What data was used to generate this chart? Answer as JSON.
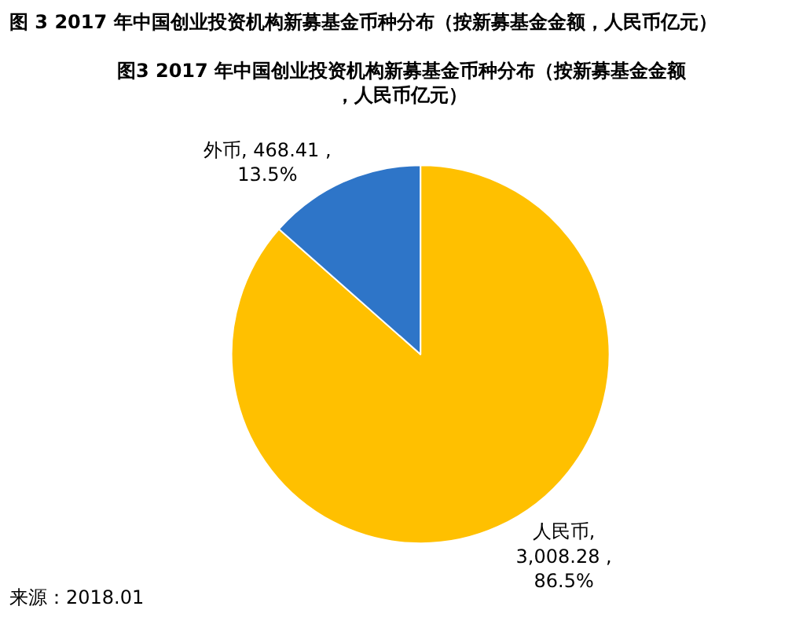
{
  "chart_data": {
    "type": "pie",
    "title": "图3 2017 年中国创业投资机构新募基金币种分布（按新募基金金额，人民币亿元）",
    "categories": [
      "人民币",
      "外币"
    ],
    "values": [
      3008.28,
      468.41
    ],
    "colors": [
      "#ffc000",
      "#2e75c8"
    ],
    "value_labels": [
      ",\n3,008.28 ,\n86.5%",
      ", 468.41 ,\n13.5%"
    ],
    "annotations": [
      "图 3 2017 年中国创业投资机构新募基金币种分布（按新募基金金额，人民币亿元）",
      "来源：2018.01"
    ]
  }
}
